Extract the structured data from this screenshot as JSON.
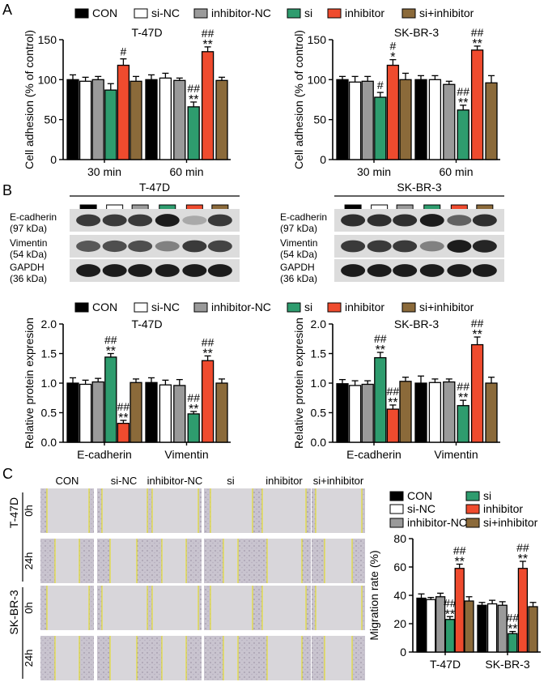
{
  "panels": {
    "a": "A",
    "b": "B",
    "c": "C"
  },
  "colors": {
    "CON": "#000000",
    "si-NC": "#ffffff",
    "inhibitor-NC": "#9a9a9a",
    "si": "#2e9c6e",
    "inhibitor": "#ef4b2e",
    "si+inhibitor": "#8b6a3a"
  },
  "legend": [
    "CON",
    "si-NC",
    "inhibitor-NC",
    "si",
    "inhibitor",
    "si+inhibitor"
  ],
  "western": {
    "lanes": [
      "CON",
      "si-NC",
      "inhibitor-NC",
      "si",
      "inhibitor",
      "si+inhibitor"
    ],
    "blots": [
      {
        "cell": "T-47D",
        "rows": [
          {
            "name": "E-cadherin",
            "size": "(97 kDa)"
          },
          {
            "name": "Vimentin",
            "size": "(54 kDa)"
          },
          {
            "name": "GAPDH",
            "size": "(36 kDa)"
          }
        ]
      },
      {
        "cell": "SK-BR-3",
        "rows": [
          {
            "name": "E-cadherin",
            "size": "(97 kDa)"
          },
          {
            "name": "Vimentin",
            "size": "(54 kDa)"
          },
          {
            "name": "GAPDH",
            "size": "(36 kDa)"
          }
        ]
      }
    ]
  },
  "scratch": {
    "conditions": [
      "CON",
      "si-NC",
      "inhibitor-NC",
      "si",
      "inhibitor",
      "si+inhibitor"
    ],
    "cells": [
      "T-47D",
      "SK-BR-3"
    ],
    "times": [
      "0h",
      "24h"
    ]
  },
  "chart_data": [
    {
      "type": "bar",
      "title": "T-47D",
      "ylabel": "Cell adhesion (% of control)",
      "categories": [
        "30 min",
        "60 min"
      ],
      "ylim": [
        0,
        150
      ],
      "yticks": [
        0,
        50,
        100,
        150
      ],
      "series": [
        {
          "name": "CON",
          "values": [
            100,
            100
          ],
          "errors": [
            6,
            6
          ]
        },
        {
          "name": "si-NC",
          "values": [
            98,
            102
          ],
          "errors": [
            5,
            6
          ]
        },
        {
          "name": "inhibitor-NC",
          "values": [
            100,
            99
          ],
          "errors": [
            4,
            3
          ]
        },
        {
          "name": "si",
          "values": [
            87,
            66
          ],
          "errors": [
            8,
            6
          ]
        },
        {
          "name": "inhibitor",
          "values": [
            118,
            135
          ],
          "errors": [
            8,
            6
          ]
        },
        {
          "name": "si+inhibitor",
          "values": [
            98,
            99
          ],
          "errors": [
            6,
            4
          ]
        }
      ],
      "annotations": [
        {
          "series": "inhibitor",
          "category": "30 min",
          "text": [
            "#"
          ]
        },
        {
          "series": "si",
          "category": "60 min",
          "text": [
            "##",
            "**"
          ]
        },
        {
          "series": "inhibitor",
          "category": "60 min",
          "text": [
            "##",
            "**"
          ]
        }
      ]
    },
    {
      "type": "bar",
      "title": "SK-BR-3",
      "ylabel": "Cell adhesion (% of control)",
      "categories": [
        "30 min",
        "60 min"
      ],
      "ylim": [
        0,
        150
      ],
      "yticks": [
        0,
        50,
        100,
        150
      ],
      "series": [
        {
          "name": "CON",
          "values": [
            100,
            100
          ],
          "errors": [
            4,
            5
          ]
        },
        {
          "name": "si-NC",
          "values": [
            97,
            100
          ],
          "errors": [
            7,
            5
          ]
        },
        {
          "name": "inhibitor-NC",
          "values": [
            98,
            94
          ],
          "errors": [
            6,
            4
          ]
        },
        {
          "name": "si",
          "values": [
            78,
            62
          ],
          "errors": [
            6,
            6
          ]
        },
        {
          "name": "inhibitor",
          "values": [
            118,
            137
          ],
          "errors": [
            7,
            5
          ]
        },
        {
          "name": "si+inhibitor",
          "values": [
            100,
            96
          ],
          "errors": [
            8,
            9
          ]
        }
      ],
      "annotations": [
        {
          "series": "si",
          "category": "30 min",
          "text": [
            "#"
          ]
        },
        {
          "series": "inhibitor",
          "category": "30 min",
          "text": [
            "#",
            "*"
          ]
        },
        {
          "series": "si",
          "category": "60 min",
          "text": [
            "##",
            "**"
          ]
        },
        {
          "series": "inhibitor",
          "category": "60 min",
          "text": [
            "##",
            "**"
          ]
        }
      ]
    },
    {
      "type": "bar",
      "title": "T-47D",
      "ylabel": "Relative protein expresion",
      "categories": [
        "E-cadherin",
        "Vimentin"
      ],
      "ylim": [
        0,
        2.0
      ],
      "yticks": [
        0.0,
        0.5,
        1.0,
        1.5,
        2.0
      ],
      "series": [
        {
          "name": "CON",
          "values": [
            1.0,
            1.01
          ],
          "errors": [
            0.09,
            0.08
          ]
        },
        {
          "name": "si-NC",
          "values": [
            0.98,
            0.97
          ],
          "errors": [
            0.07,
            0.08
          ]
        },
        {
          "name": "inhibitor-NC",
          "values": [
            1.02,
            0.96
          ],
          "errors": [
            0.06,
            0.1
          ]
        },
        {
          "name": "si",
          "values": [
            1.44,
            0.48
          ],
          "errors": [
            0.06,
            0.04
          ]
        },
        {
          "name": "inhibitor",
          "values": [
            0.32,
            1.38
          ],
          "errors": [
            0.05,
            0.08
          ]
        },
        {
          "name": "si+inhibitor",
          "values": [
            1.01,
            1.0
          ],
          "errors": [
            0.06,
            0.07
          ]
        }
      ],
      "annotations": [
        {
          "series": "si",
          "category": "E-cadherin",
          "text": [
            "##",
            "**"
          ]
        },
        {
          "series": "inhibitor",
          "category": "E-cadherin",
          "text": [
            "##",
            "**"
          ]
        },
        {
          "series": "si",
          "category": "Vimentin",
          "text": [
            "##",
            "**"
          ]
        },
        {
          "series": "inhibitor",
          "category": "Vimentin",
          "text": [
            "##",
            "**"
          ]
        }
      ]
    },
    {
      "type": "bar",
      "title": "SK-BR-3",
      "ylabel": "Relative protein expresion",
      "categories": [
        "E-cadherin",
        "Vimentin"
      ],
      "ylim": [
        0,
        2.0
      ],
      "yticks": [
        0.0,
        0.5,
        1.0,
        1.5,
        2.0
      ],
      "series": [
        {
          "name": "CON",
          "values": [
            0.99,
            1.0
          ],
          "errors": [
            0.07,
            0.12
          ]
        },
        {
          "name": "si-NC",
          "values": [
            0.96,
            1.01
          ],
          "errors": [
            0.08,
            0.06
          ]
        },
        {
          "name": "inhibitor-NC",
          "values": [
            0.98,
            1.02
          ],
          "errors": [
            0.06,
            0.05
          ]
        },
        {
          "name": "si",
          "values": [
            1.43,
            0.62
          ],
          "errors": [
            0.09,
            0.09
          ]
        },
        {
          "name": "inhibitor",
          "values": [
            0.56,
            1.65
          ],
          "errors": [
            0.07,
            0.13
          ]
        },
        {
          "name": "si+inhibitor",
          "values": [
            1.03,
            1.0
          ],
          "errors": [
            0.07,
            0.1
          ]
        }
      ],
      "annotations": [
        {
          "series": "si",
          "category": "E-cadherin",
          "text": [
            "##",
            "**"
          ]
        },
        {
          "series": "inhibitor",
          "category": "E-cadherin",
          "text": [
            "##",
            "**"
          ]
        },
        {
          "series": "si",
          "category": "Vimentin",
          "text": [
            "##",
            "**"
          ]
        },
        {
          "series": "inhibitor",
          "category": "Vimentin",
          "text": [
            "##",
            "**"
          ]
        }
      ]
    },
    {
      "type": "bar",
      "ylabel": "Migration rate (%)",
      "categories": [
        "T-47D",
        "SK-BR-3"
      ],
      "ylim": [
        0,
        80
      ],
      "yticks": [
        0,
        20,
        40,
        60,
        80
      ],
      "series": [
        {
          "name": "CON",
          "values": [
            38,
            33
          ],
          "errors": [
            3,
            2
          ]
        },
        {
          "name": "si-NC",
          "values": [
            37,
            34
          ],
          "errors": [
            1.5,
            2.5
          ]
        },
        {
          "name": "inhibitor-NC",
          "values": [
            39,
            33
          ],
          "errors": [
            2.5,
            2.5
          ]
        },
        {
          "name": "si",
          "values": [
            23,
            13
          ],
          "errors": [
            2,
            1.5
          ]
        },
        {
          "name": "inhibitor",
          "values": [
            59,
            59
          ],
          "errors": [
            3,
            5
          ]
        },
        {
          "name": "si+inhibitor",
          "values": [
            36,
            32
          ],
          "errors": [
            3,
            3
          ]
        }
      ],
      "annotations": [
        {
          "series": "si",
          "category": "T-47D",
          "text": [
            "##",
            "**"
          ]
        },
        {
          "series": "inhibitor",
          "category": "T-47D",
          "text": [
            "##",
            "**"
          ]
        },
        {
          "series": "si",
          "category": "SK-BR-3",
          "text": [
            "##",
            "**"
          ]
        },
        {
          "series": "inhibitor",
          "category": "SK-BR-3",
          "text": [
            "##",
            "**"
          ]
        }
      ]
    }
  ]
}
